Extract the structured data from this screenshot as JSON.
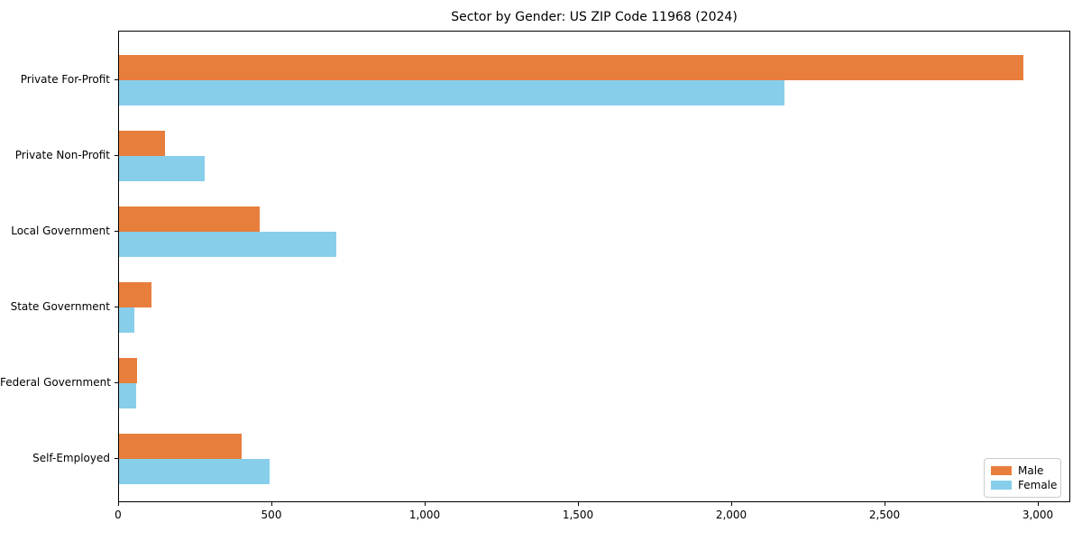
{
  "chart_data": {
    "type": "bar",
    "orientation": "horizontal",
    "title": "Sector by Gender: US ZIP Code 11968 (2024)",
    "categories": [
      "Private For-Profit",
      "Private Non-Profit",
      "Local Government",
      "State Government",
      "Federal Government",
      "Self-Employed"
    ],
    "series": [
      {
        "name": "Male",
        "color": "#e87e3c",
        "values": [
          2950,
          150,
          460,
          105,
          60,
          400
        ]
      },
      {
        "name": "Female",
        "color": "#87ceeb",
        "values": [
          2170,
          280,
          710,
          50,
          55,
          490
        ]
      }
    ],
    "xlabel": "",
    "ylabel": "",
    "xlim": [
      0,
      3106
    ],
    "xticks": [
      0,
      500,
      1000,
      1500,
      2000,
      2500,
      3000
    ],
    "grid": false,
    "legend_position": "lower right",
    "axis_color": "#000000",
    "background_color": "#ffffff"
  }
}
